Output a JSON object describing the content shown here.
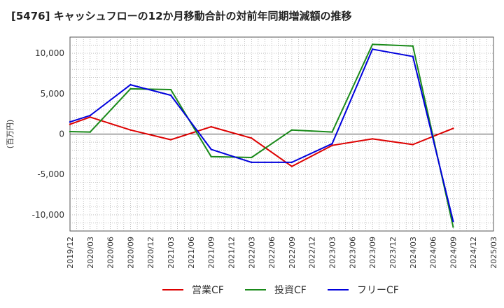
{
  "chart_data": {
    "type": "line",
    "title": "[5476]  キャッシュフローの12か月移動合計の対前年同期増減額の推移",
    "ylabel": "(百万円)",
    "xlabel": "",
    "ylim": [
      -12000,
      12000
    ],
    "yticks": [
      10000,
      5000,
      0,
      -5000,
      -10000
    ],
    "ytick_labels": [
      "10,000",
      "5,000",
      "0",
      "-5,000",
      "-10,000"
    ],
    "x_ticks": [
      "2019/12",
      "2020/03",
      "2020/06",
      "2020/09",
      "2020/12",
      "2021/03",
      "2021/06",
      "2021/09",
      "2021/12",
      "2022/03",
      "2022/06",
      "2022/09",
      "2022/12",
      "2023/03",
      "2023/06",
      "2023/09",
      "2023/12",
      "2024/03",
      "2024/06",
      "2024/09",
      "2024/12",
      "2025/03"
    ],
    "grid": true,
    "legend_position": "bottom",
    "series": [
      {
        "name": "営業CF",
        "color": "#dd0000",
        "x": [
          "2019/12",
          "2020/03",
          "2020/09",
          "2021/03",
          "2021/09",
          "2022/03",
          "2022/09",
          "2023/03",
          "2023/09",
          "2024/03",
          "2024/09"
        ],
        "values": [
          1200,
          2100,
          500,
          -700,
          900,
          -500,
          -4000,
          -1400,
          -600,
          -1300,
          700
        ]
      },
      {
        "name": "投資CF",
        "color": "#1a8a1a",
        "x": [
          "2019/12",
          "2020/03",
          "2020/09",
          "2021/03",
          "2021/09",
          "2022/03",
          "2022/09",
          "2023/03",
          "2023/09",
          "2024/03",
          "2024/09"
        ],
        "values": [
          300,
          250,
          5600,
          5500,
          -2800,
          -2900,
          500,
          250,
          11100,
          10900,
          -11500
        ]
      },
      {
        "name": "フリーCF",
        "color": "#0000dd",
        "x": [
          "2019/12",
          "2020/03",
          "2020/09",
          "2021/03",
          "2021/09",
          "2022/03",
          "2022/09",
          "2023/03",
          "2023/09",
          "2024/03",
          "2024/09"
        ],
        "values": [
          1500,
          2300,
          6100,
          4800,
          -1900,
          -3500,
          -3500,
          -1200,
          10500,
          9600,
          -10800
        ]
      }
    ]
  }
}
